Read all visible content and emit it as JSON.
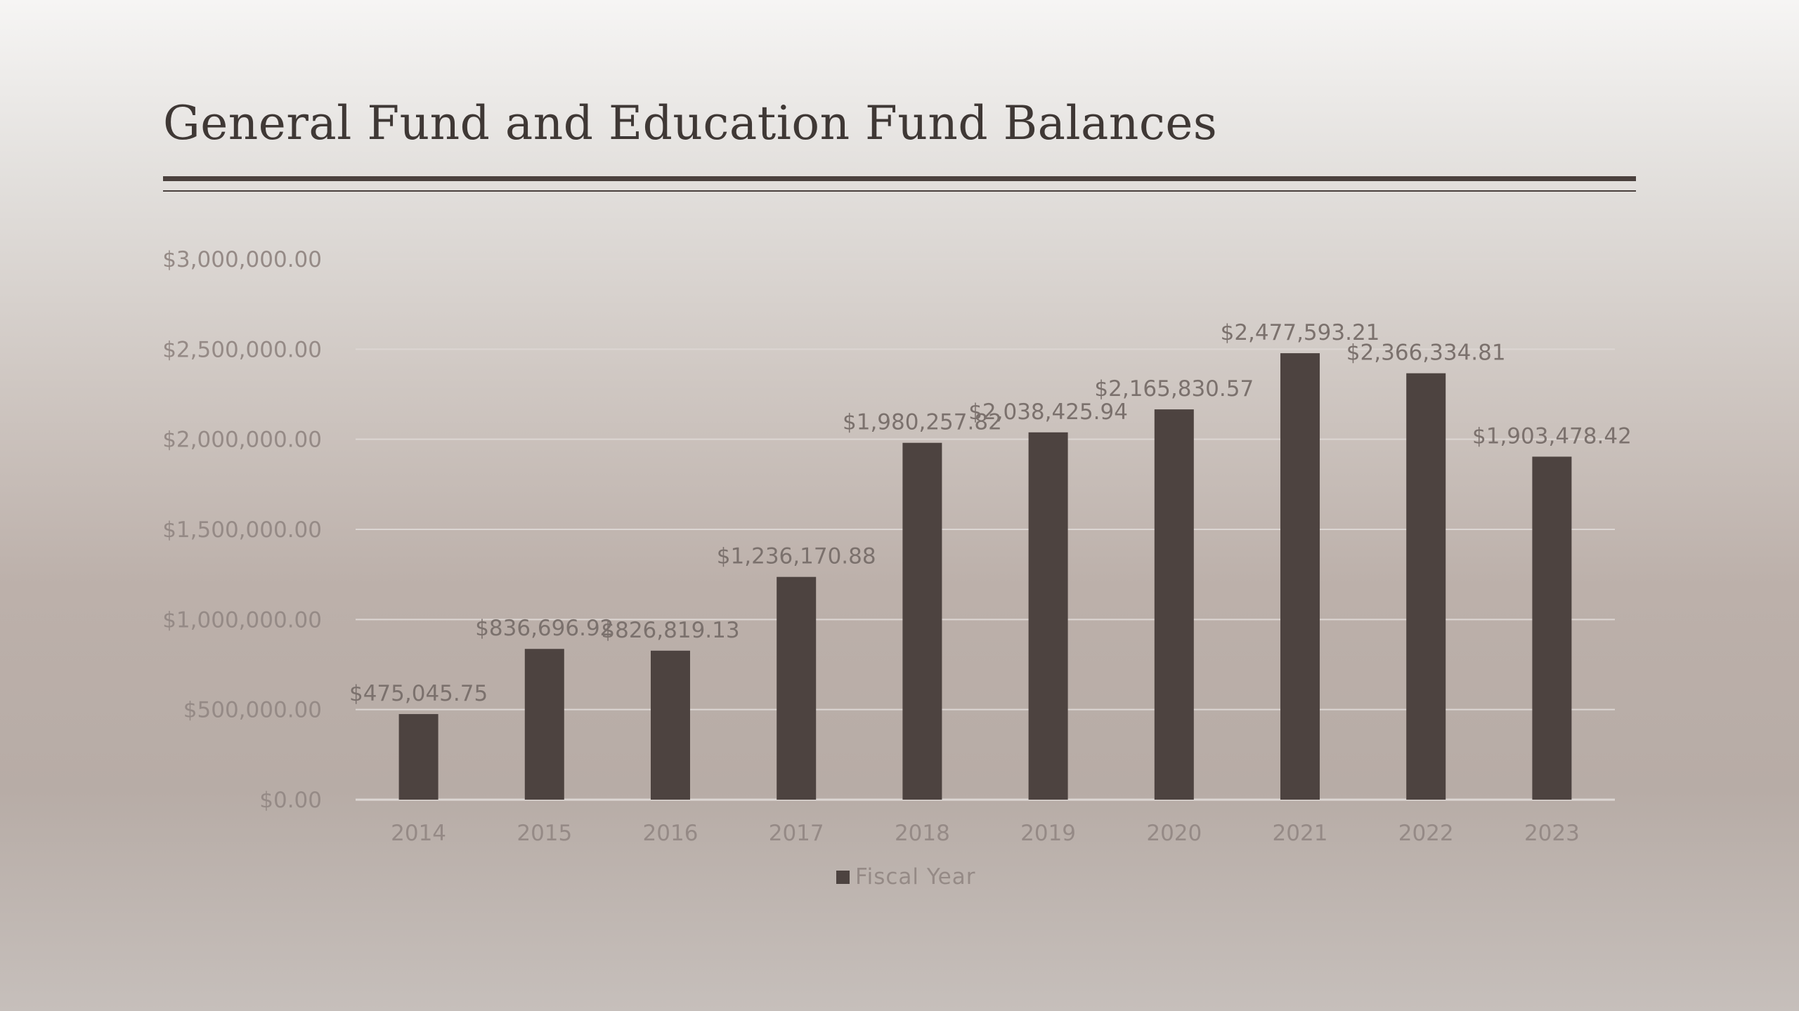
{
  "slide": {
    "title": "General Fund and Education Fund Balances"
  },
  "colors": {
    "bar": "#4d4340",
    "gridline": "#dcd6d3",
    "title": "#3f3835",
    "rule": "#4a403d",
    "axis_text": "#958a86",
    "data_label_text": "#7b716d"
  },
  "chart_data": {
    "type": "bar",
    "categories": [
      "2014",
      "2015",
      "2016",
      "2017",
      "2018",
      "2019",
      "2020",
      "2021",
      "2022",
      "2023"
    ],
    "series": [
      {
        "name": "Fiscal Year",
        "values": [
          475045.75,
          836696.92,
          826819.13,
          1236170.88,
          1980257.82,
          2038425.94,
          2165830.57,
          2477593.21,
          2366334.81,
          1903478.42
        ],
        "labels": [
          "$475,045.75",
          "$836,696.92",
          "$826,819.13",
          "$1,236,170.88",
          "$1,980,257.82",
          "$2,038,425.94",
          "$2,165,830.57",
          "$2,477,593.21",
          "$2,366,334.81",
          "$1,903,478.42"
        ]
      }
    ],
    "ylim": [
      0,
      3000000
    ],
    "yticks": [
      0,
      500000,
      1000000,
      1500000,
      2000000,
      2500000,
      3000000
    ],
    "ytick_labels": [
      "$0.00",
      "$500,000.00",
      "$1,000,000.00",
      "$1,500,000.00",
      "$2,000,000.00",
      "$2,500,000.00",
      "$3,000,000.00"
    ],
    "grid": true,
    "legend": {
      "position": "bottom",
      "entries": [
        "Fiscal Year"
      ]
    },
    "title": "",
    "xlabel": "",
    "ylabel": ""
  }
}
